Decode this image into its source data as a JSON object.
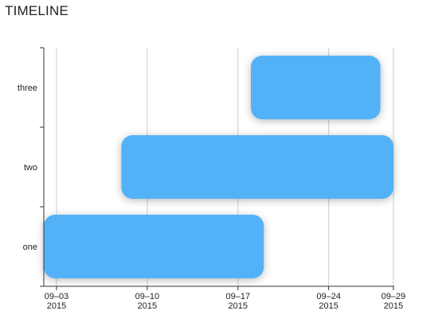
{
  "chart_data": {
    "type": "timeline",
    "title": "TIMELINE",
    "categories": [
      "one",
      "two",
      "three"
    ],
    "tasks": [
      {
        "label": "one",
        "start": "2015-09-02",
        "end": "2015-09-19"
      },
      {
        "label": "two",
        "start": "2015-09-08",
        "end": "2015-09-29"
      },
      {
        "label": "three",
        "start": "2015-09-18",
        "end": "2015-09-28"
      }
    ],
    "x_ticks": [
      {
        "date": "2015-09-03",
        "line1": "09–03",
        "line2": "2015"
      },
      {
        "date": "2015-09-10",
        "line1": "09–10",
        "line2": "2015"
      },
      {
        "date": "2015-09-17",
        "line1": "09–17",
        "line2": "2015"
      },
      {
        "date": "2015-09-24",
        "line1": "09–24",
        "line2": "2015"
      },
      {
        "date": "2015-09-29",
        "line1": "09–29",
        "line2": "2015"
      }
    ],
    "x_range": [
      "2015-09-03",
      "2015-09-29"
    ],
    "grid": true,
    "bar_color": "#52b2f7",
    "grid_color": "#cccccc",
    "axis_color": "#333333"
  }
}
